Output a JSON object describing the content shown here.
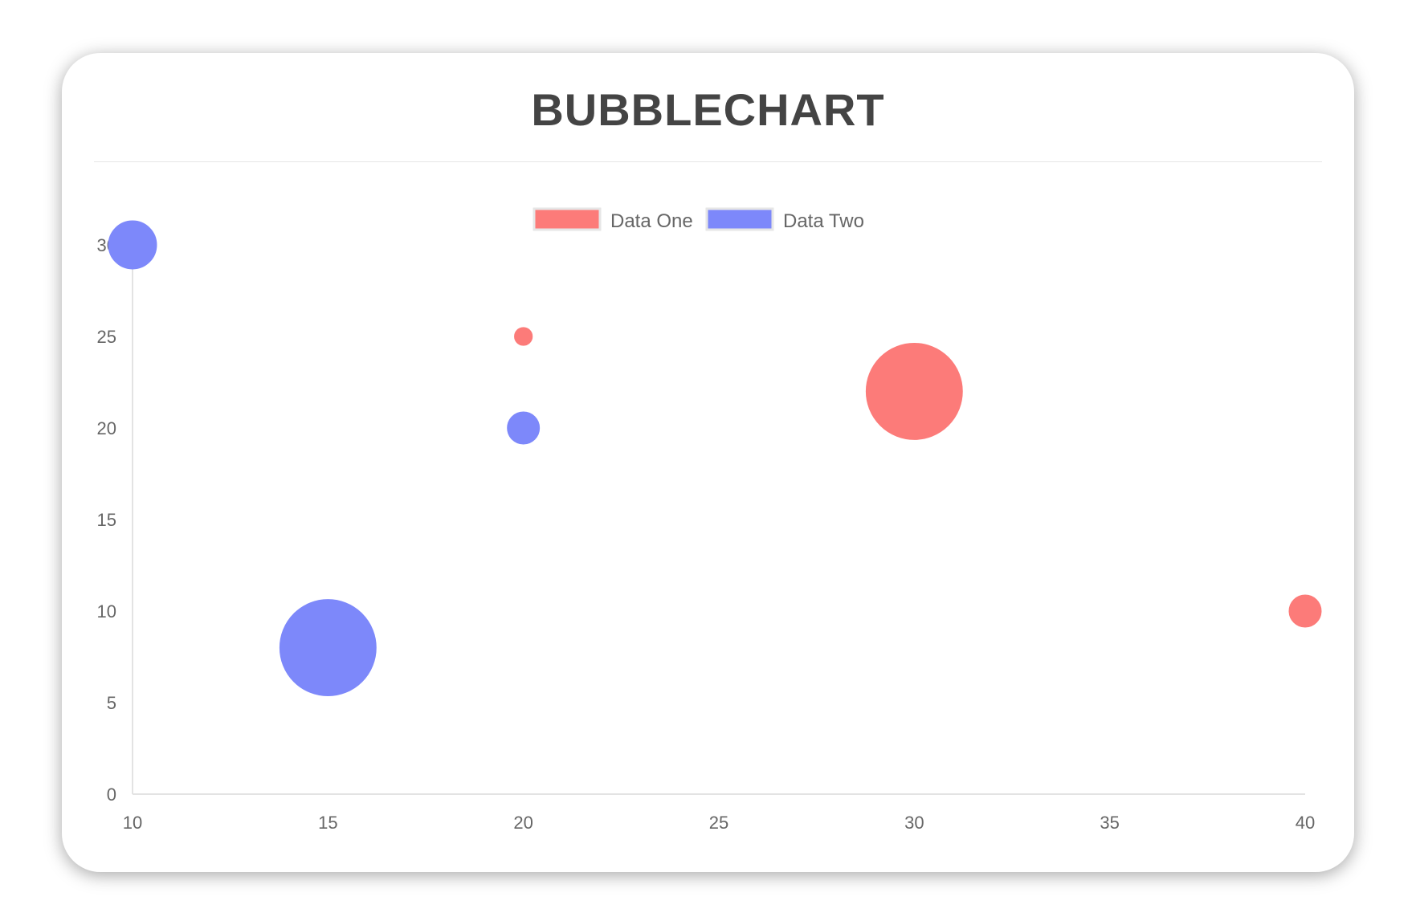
{
  "chart_data": {
    "type": "bubble",
    "title": "BUBBLECHART",
    "xlim": [
      10,
      40
    ],
    "ylim": [
      0,
      30
    ],
    "x_ticks": [
      "10",
      "15",
      "20",
      "25",
      "30",
      "35",
      "40"
    ],
    "y_ticks": [
      "0",
      "5",
      "10",
      "15",
      "20",
      "25",
      "30"
    ],
    "grid": false,
    "legend_position": "top",
    "series": [
      {
        "name": "Data One",
        "color": "#fc7b79",
        "points": [
          {
            "x": 20,
            "y": 25,
            "r": 5
          },
          {
            "x": 30,
            "y": 22,
            "r": 27
          },
          {
            "x": 40,
            "y": 10,
            "r": 9
          }
        ]
      },
      {
        "name": "Data Two",
        "color": "#7d88fa",
        "points": [
          {
            "x": 10,
            "y": 30,
            "r": 13.5
          },
          {
            "x": 20,
            "y": 20,
            "r": 9
          },
          {
            "x": 15,
            "y": 8,
            "r": 27
          }
        ]
      }
    ]
  }
}
